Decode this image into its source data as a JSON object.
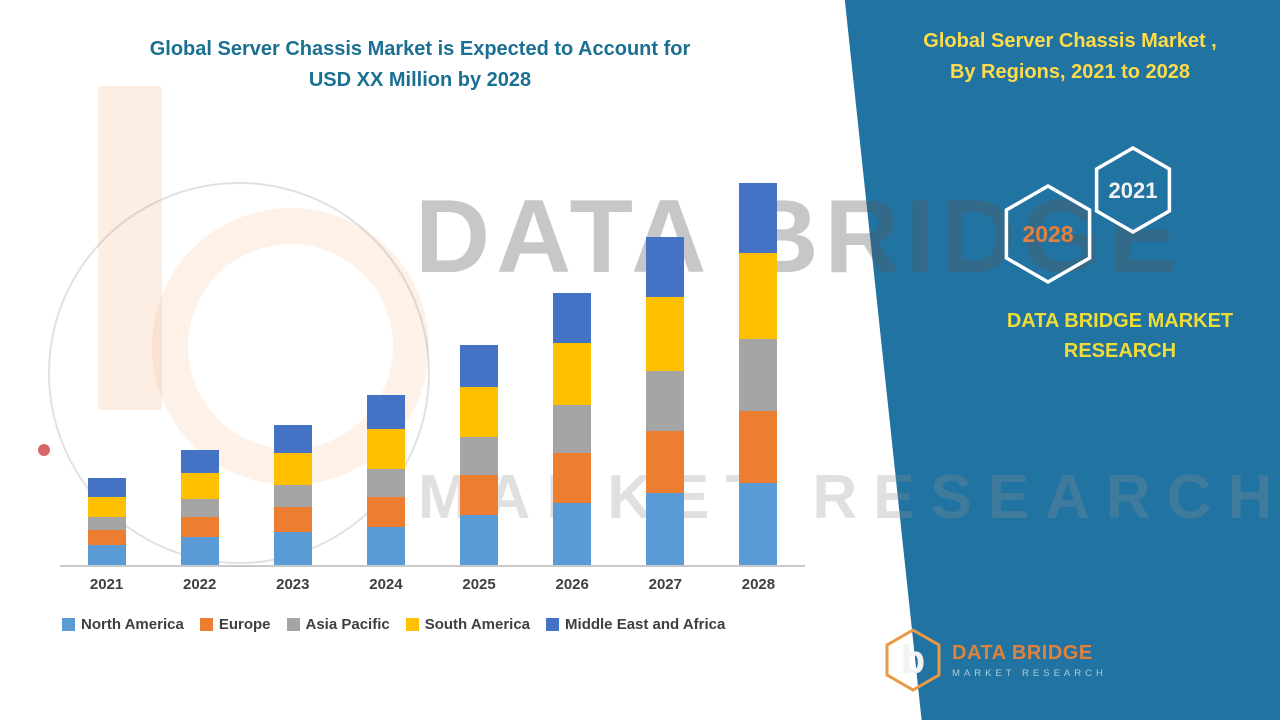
{
  "left_title": {
    "line1": "Global Server Chassis Market is Expected to Account for",
    "line2": "USD XX Million by 2028"
  },
  "right_panel": {
    "title_line1": "Global Server Chassis Market ,",
    "title_line2": "By Regions, 2021 to 2028",
    "hexagon_back_year": "2028",
    "hexagon_front_year": "2021",
    "brand_line1": "DATA BRIDGE MARKET",
    "brand_line2": "RESEARCH"
  },
  "watermark": {
    "line1": "DATA BRIDGE",
    "line2": "MARKET RESEARCH"
  },
  "footer_logo": {
    "monogram": "b",
    "name": "DATA BRIDGE",
    "tagline": "MARKET RESEARCH"
  },
  "colors": {
    "panel_blue": "#2173A2",
    "left_title_teal": "#1B7092",
    "panel_title_yellow": "#FFDB4A",
    "brand_yellow": "#EFDC3A",
    "hex_back_text_orange": "#E0813F",
    "hex_front_text_white": "#F2F2F2",
    "axis_label_gray": "#3F3F3F"
  },
  "chart_data": {
    "type": "bar",
    "stacked": true,
    "title": "Global Server Chassis Market is Expected to Account for USD XX Million by 2028",
    "xlabel": "",
    "ylabel": "",
    "value_unit": "USD Million (amounts masked as XX in source; values are relative estimates from bar heights)",
    "grid": false,
    "y_axis_visible": false,
    "legend_position": "bottom",
    "categories": [
      "2021",
      "2022",
      "2023",
      "2024",
      "2025",
      "2026",
      "2027",
      "2028"
    ],
    "series": [
      {
        "name": "North America",
        "color": "#5B9BD5",
        "values": [
          20,
          28,
          33,
          38,
          50,
          62,
          72,
          82
        ]
      },
      {
        "name": "Europe",
        "color": "#ED7D31",
        "values": [
          15,
          20,
          25,
          30,
          40,
          50,
          62,
          72
        ]
      },
      {
        "name": "Asia Pacific",
        "color": "#A5A5A5",
        "values": [
          13,
          18,
          22,
          28,
          38,
          48,
          60,
          72
        ]
      },
      {
        "name": "South America",
        "color": "#FFC000",
        "values": [
          20,
          26,
          32,
          40,
          50,
          62,
          74,
          86
        ]
      },
      {
        "name": "Middle East and Africa",
        "color": "#4472C4",
        "values": [
          19,
          23,
          28,
          34,
          42,
          50,
          60,
          70
        ]
      }
    ],
    "stacked_totals": [
      87,
      115,
      140,
      170,
      220,
      272,
      328,
      382
    ],
    "ylim": [
      0,
      400
    ]
  }
}
